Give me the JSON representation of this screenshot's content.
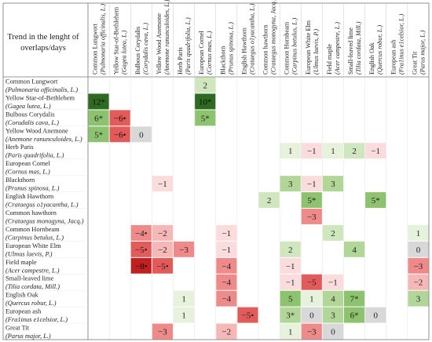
{
  "chart_data": {
    "type": "heatmap",
    "title": "Trend in the lenght of overlaps/days",
    "columns": [
      {
        "name": "Common Lungwort",
        "latin": "(Pulmonaria officinalis, L.)"
      },
      {
        "name": "Yellow Star-of-Bethlehem",
        "latin": "(Gagea lutea, L.)"
      },
      {
        "name": "Bulbous Corydalis",
        "latin": "(Corydalis cava, L.)"
      },
      {
        "name": "Yellow Wood Anemone",
        "latin": "(Anemone ranunculoides, L.)"
      },
      {
        "name": "Herb Paris",
        "latin": "(Paris quadrifolia, L.)"
      },
      {
        "name": "European Cornel",
        "latin": "(Cornus mas, L.)"
      },
      {
        "name": "Blackthorn",
        "latin": "(Prunus spinosa, L.)"
      },
      {
        "name": "English Hawthorn",
        "latin": "(Crataegus o1yacantha, L.)"
      },
      {
        "name": "Common hawthorn",
        "latin": "(Crataegus monogyna, Jacq.)"
      },
      {
        "name": "Common Hornbeam",
        "latin": "(Carpinus betulus, L.)"
      },
      {
        "name": "European White Elm",
        "latin": "(Ulmus laevis, P.)"
      },
      {
        "name": "Field maple",
        "latin": "(Acer campestre, L.)"
      },
      {
        "name": "Small-leaved lime",
        "latin": "(Tilia cordata, Mill.)"
      },
      {
        "name": "English Oak",
        "latin": "(Quercus robur, L.)"
      },
      {
        "name": "European ash",
        "latin": "(Fra1inus e1celsior, L.)"
      },
      {
        "name": "Great Tit",
        "latin": "(Parus major, L.)"
      }
    ],
    "rows": [
      {
        "name": "Common Lungwort",
        "latin": "(Pulmonaria officinalis, L.)"
      },
      {
        "name": "Yellow Star-of-Bethlehem",
        "latin": "(Gagea lutea, L.)"
      },
      {
        "name": "Bulbous Corydalis",
        "latin": "(Corudalis cava, L.)"
      },
      {
        "name": "Yellow Wood Anemone",
        "latin": "(Anemone ranunculoides, L.)"
      },
      {
        "name": "Herb Paris",
        "latin": "(Paris quadrifolia, L.)"
      },
      {
        "name": "European Cornel",
        "latin": "(Cornus mas, L.)"
      },
      {
        "name": "Blackthorn",
        "latin": "(Prunus spinosa, L.)"
      },
      {
        "name": "English Hawthorn",
        "latin": "(Crataegus o1yacantha, L.)"
      },
      {
        "name": "Common hawthorn",
        "latin": "(Crataegus monogyna, Jacq.)"
      },
      {
        "name": "Common Hornbeam",
        "latin": "(Carpinus betulus, L.)"
      },
      {
        "name": "European White Elm",
        "latin": "(Ulmus laevis, P.)"
      },
      {
        "name": "Field maple",
        "latin": "(Acer campestre, L.)"
      },
      {
        "name": "Small-leaved lime",
        "latin": "(Tilia cordata, Mill.)"
      },
      {
        "name": "English Oak",
        "latin": "(Quercus robur, L.)"
      },
      {
        "name": "European ash",
        "latin": "(Fra1inus e1celsior, L.)"
      },
      {
        "name": "Great Tit",
        "latin": "(Parus major, L.)"
      }
    ],
    "cells": [
      {
        "row": 0,
        "col": 5,
        "value": "2",
        "num": 2
      },
      {
        "row": 1,
        "col": 0,
        "value": "12*",
        "num": 12
      },
      {
        "row": 1,
        "col": 5,
        "value": "10*",
        "num": 10
      },
      {
        "row": 2,
        "col": 0,
        "value": "6*",
        "num": 6
      },
      {
        "row": 2,
        "col": 1,
        "value": "−6•",
        "num": -6
      },
      {
        "row": 2,
        "col": 5,
        "value": "5*",
        "num": 5
      },
      {
        "row": 3,
        "col": 0,
        "value": "5*",
        "num": 5
      },
      {
        "row": 3,
        "col": 1,
        "value": "−6•",
        "num": -6
      },
      {
        "row": 3,
        "col": 2,
        "value": "0",
        "num": 0
      },
      {
        "row": 4,
        "col": 9,
        "value": "1",
        "num": 1
      },
      {
        "row": 4,
        "col": 10,
        "value": "−1",
        "num": -1
      },
      {
        "row": 4,
        "col": 11,
        "value": "1",
        "num": 1
      },
      {
        "row": 4,
        "col": 12,
        "value": "2",
        "num": 2
      },
      {
        "row": 4,
        "col": 13,
        "value": "−1",
        "num": -1
      },
      {
        "row": 6,
        "col": 3,
        "value": "−1",
        "num": -1
      },
      {
        "row": 6,
        "col": 9,
        "value": "3",
        "num": 3
      },
      {
        "row": 6,
        "col": 10,
        "value": "−1",
        "num": -1
      },
      {
        "row": 6,
        "col": 11,
        "value": "3",
        "num": 3
      },
      {
        "row": 7,
        "col": 8,
        "value": "2",
        "num": 2
      },
      {
        "row": 7,
        "col": 10,
        "value": "5*",
        "num": 5
      },
      {
        "row": 7,
        "col": 13,
        "value": "5*",
        "num": 5
      },
      {
        "row": 8,
        "col": 10,
        "value": "−3",
        "num": -3
      },
      {
        "row": 9,
        "col": 2,
        "value": "−4•",
        "num": -4
      },
      {
        "row": 9,
        "col": 3,
        "value": "−2",
        "num": -2
      },
      {
        "row": 9,
        "col": 6,
        "value": "−1",
        "num": -1
      },
      {
        "row": 9,
        "col": 11,
        "value": "2",
        "num": 2
      },
      {
        "row": 9,
        "col": 15,
        "value": "1",
        "num": 1
      },
      {
        "row": 10,
        "col": 2,
        "value": "−5•",
        "num": -5
      },
      {
        "row": 10,
        "col": 3,
        "value": "−2",
        "num": -2
      },
      {
        "row": 10,
        "col": 4,
        "value": "−3",
        "num": -3
      },
      {
        "row": 10,
        "col": 6,
        "value": "−1",
        "num": -1
      },
      {
        "row": 10,
        "col": 9,
        "value": "2",
        "num": 2
      },
      {
        "row": 10,
        "col": 12,
        "value": "4",
        "num": 4
      },
      {
        "row": 10,
        "col": 15,
        "value": "0",
        "num": 0
      },
      {
        "row": 11,
        "col": 2,
        "value": "−8•",
        "num": -8
      },
      {
        "row": 11,
        "col": 3,
        "value": "−5•",
        "num": -5
      },
      {
        "row": 11,
        "col": 6,
        "value": "−4",
        "num": -4
      },
      {
        "row": 11,
        "col": 9,
        "value": "−1",
        "num": -1
      },
      {
        "row": 11,
        "col": 15,
        "value": "−3",
        "num": -3
      },
      {
        "row": 12,
        "col": 6,
        "value": "−4",
        "num": -4
      },
      {
        "row": 12,
        "col": 9,
        "value": "−1",
        "num": -1
      },
      {
        "row": 12,
        "col": 10,
        "value": "−5",
        "num": -5
      },
      {
        "row": 12,
        "col": 11,
        "value": "−1",
        "num": -1
      },
      {
        "row": 12,
        "col": 15,
        "value": "−2",
        "num": -2
      },
      {
        "row": 13,
        "col": 4,
        "value": "1",
        "num": 1
      },
      {
        "row": 13,
        "col": 6,
        "value": "−4",
        "num": -4
      },
      {
        "row": 13,
        "col": 9,
        "value": "5",
        "num": 5
      },
      {
        "row": 13,
        "col": 10,
        "value": "1",
        "num": 1
      },
      {
        "row": 13,
        "col": 11,
        "value": "4",
        "num": 4
      },
      {
        "row": 13,
        "col": 12,
        "value": "7*",
        "num": 7
      },
      {
        "row": 13,
        "col": 15,
        "value": "3",
        "num": 3
      },
      {
        "row": 14,
        "col": 4,
        "value": "1",
        "num": 1
      },
      {
        "row": 14,
        "col": 7,
        "value": "−5•",
        "num": -5
      },
      {
        "row": 14,
        "col": 9,
        "value": "3*",
        "num": 3
      },
      {
        "row": 14,
        "col": 10,
        "value": "0",
        "num": 0
      },
      {
        "row": 14,
        "col": 11,
        "value": "3",
        "num": 3
      },
      {
        "row": 14,
        "col": 12,
        "value": "6*",
        "num": 6
      },
      {
        "row": 14,
        "col": 13,
        "value": "0",
        "num": 0
      },
      {
        "row": 15,
        "col": 3,
        "value": "−3",
        "num": -3
      },
      {
        "row": 15,
        "col": 6,
        "value": "−2",
        "num": -2
      },
      {
        "row": 15,
        "col": 9,
        "value": "1",
        "num": 1
      },
      {
        "row": 15,
        "col": 10,
        "value": "−3",
        "num": -3
      },
      {
        "row": 15,
        "col": 11,
        "value": "0",
        "num": 0
      }
    ],
    "colors": {
      "positive_scale": [
        "#e6f2dc",
        "#cfe6bf",
        "#b2d698",
        "#8dc36f",
        "#2e6a21"
      ],
      "negative_scale": [
        "#fbdcdc",
        "#f6b7b7",
        "#ef8a8a",
        "#e35a5a",
        "#c02020"
      ],
      "zero": "#d8d8d8",
      "grid": "#b5b5b5"
    }
  }
}
